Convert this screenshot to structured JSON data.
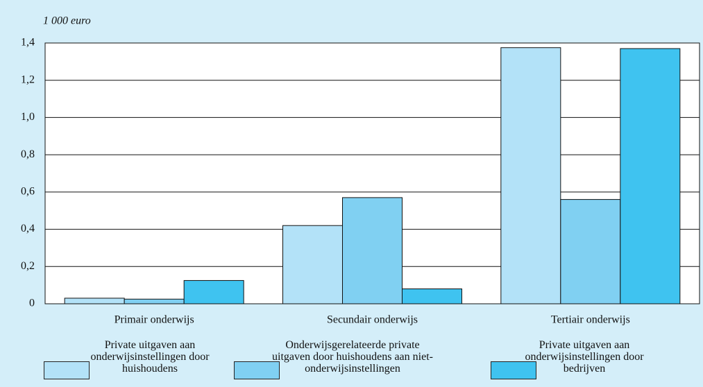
{
  "chart_data": {
    "type": "bar",
    "y_label": "1 000 euro",
    "categories": [
      "Primair onderwijs",
      "Secundair onderwijs",
      "Tertiair onderwijs"
    ],
    "series": [
      {
        "name": "Private uitgaven aan onderwijsinstellingen door huishoudens",
        "color": "#b3e2f8",
        "values": [
          0.03,
          0.42,
          1.375
        ]
      },
      {
        "name": "Onderwijsgerelateerde private uitgaven door huishoudens aan niet-onderwijsinstellingen",
        "color": "#80d0f2",
        "values": [
          0.025,
          0.57,
          0.56
        ]
      },
      {
        "name": "Private uitgaven aan onderwijsinstellingen door bedrijven",
        "color": "#3fc3f0",
        "values": [
          0.125,
          0.08,
          1.37
        ]
      }
    ],
    "ylim": [
      0,
      1.4
    ],
    "yticks": [
      0,
      {
        "value": 0.2,
        "label": "0,2"
      },
      {
        "value": 0.4,
        "label": "0,4"
      },
      {
        "value": 0.6,
        "label": "0,6"
      },
      {
        "value": 0.8,
        "label": "0,8"
      },
      {
        "value": 1.0,
        "label": "1,0"
      },
      {
        "value": 1.2,
        "label": "1,2"
      },
      {
        "value": 1.4,
        "label": "1,4"
      }
    ],
    "grid": true
  }
}
